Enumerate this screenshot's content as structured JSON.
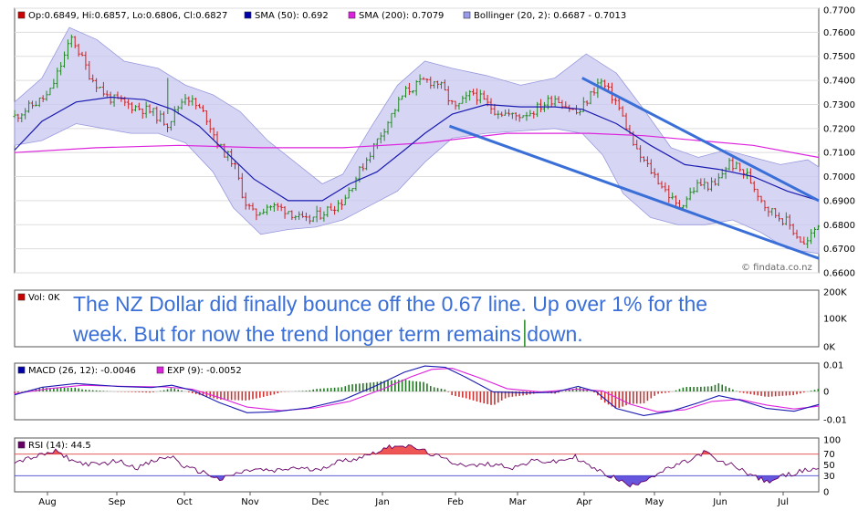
{
  "chart_data": [
    {
      "type": "candlestick",
      "legend": [
        {
          "label": "Op:0.6849, Hi:0.6857, Lo:0.6806, Cl:0.6827",
          "color": "#cc0000"
        },
        {
          "label": "SMA (50): 0.692",
          "color": "#0000aa"
        },
        {
          "label": "SMA (200): 0.7079",
          "color": "#dd22dd"
        },
        {
          "label": "Bollinger (20, 2): 0.6687 - 0.7013",
          "color": "#9999ee"
        }
      ],
      "ylim": [
        0.66,
        0.77
      ],
      "yticks": [
        "0.7700",
        "0.7600",
        "0.7500",
        "0.7400",
        "0.7300",
        "0.7200",
        "0.7100",
        "0.7000",
        "0.6900",
        "0.6800",
        "0.6700",
        "0.6600"
      ],
      "watermark": "© findata.co.nz",
      "price_path": [
        [
          0,
          0.725
        ],
        [
          25,
          0.734
        ],
        [
          42,
          0.758
        ],
        [
          55,
          0.742
        ],
        [
          68,
          0.733
        ],
        [
          82,
          0.73
        ],
        [
          100,
          0.727
        ],
        [
          112,
          0.722
        ],
        [
          125,
          0.734
        ],
        [
          140,
          0.725
        ],
        [
          150,
          0.712
        ],
        [
          160,
          0.706
        ],
        [
          168,
          0.69
        ],
        [
          175,
          0.684
        ],
        [
          185,
          0.688
        ],
        [
          200,
          0.686
        ],
        [
          212,
          0.681
        ],
        [
          222,
          0.684
        ],
        [
          240,
          0.69
        ],
        [
          255,
          0.705
        ],
        [
          270,
          0.72
        ],
        [
          285,
          0.735
        ],
        [
          300,
          0.74
        ],
        [
          310,
          0.739
        ],
        [
          322,
          0.728
        ],
        [
          335,
          0.735
        ],
        [
          350,
          0.728
        ],
        [
          365,
          0.725
        ],
        [
          378,
          0.727
        ],
        [
          395,
          0.733
        ],
        [
          412,
          0.726
        ],
        [
          428,
          0.74
        ],
        [
          440,
          0.731
        ],
        [
          455,
          0.71
        ],
        [
          470,
          0.699
        ],
        [
          485,
          0.687
        ],
        [
          500,
          0.697
        ],
        [
          512,
          0.696
        ],
        [
          522,
          0.706
        ],
        [
          535,
          0.701
        ],
        [
          550,
          0.687
        ],
        [
          565,
          0.681
        ],
        [
          578,
          0.671
        ],
        [
          588,
          0.681
        ]
      ],
      "sma50": [
        [
          0,
          0.711
        ],
        [
          20,
          0.723
        ],
        [
          45,
          0.731
        ],
        [
          70,
          0.733
        ],
        [
          95,
          0.732
        ],
        [
          115,
          0.728
        ],
        [
          135,
          0.721
        ],
        [
          155,
          0.71
        ],
        [
          175,
          0.699
        ],
        [
          200,
          0.69
        ],
        [
          225,
          0.69
        ],
        [
          245,
          0.697
        ],
        [
          265,
          0.702
        ],
        [
          285,
          0.711
        ],
        [
          300,
          0.718
        ],
        [
          320,
          0.726
        ],
        [
          345,
          0.73
        ],
        [
          370,
          0.729
        ],
        [
          395,
          0.729
        ],
        [
          415,
          0.728
        ],
        [
          440,
          0.722
        ],
        [
          465,
          0.713
        ],
        [
          490,
          0.705
        ],
        [
          515,
          0.703
        ],
        [
          540,
          0.7
        ],
        [
          565,
          0.694
        ],
        [
          588,
          0.69
        ]
      ],
      "sma200": [
        [
          0,
          0.71
        ],
        [
          60,
          0.712
        ],
        [
          120,
          0.713
        ],
        [
          180,
          0.712
        ],
        [
          240,
          0.712
        ],
        [
          300,
          0.714
        ],
        [
          360,
          0.718
        ],
        [
          420,
          0.718
        ],
        [
          460,
          0.717
        ],
        [
          500,
          0.715
        ],
        [
          540,
          0.713
        ],
        [
          588,
          0.708
        ]
      ],
      "bollinger_upper": [
        [
          0,
          0.731
        ],
        [
          20,
          0.741
        ],
        [
          40,
          0.762
        ],
        [
          60,
          0.757
        ],
        [
          80,
          0.748
        ],
        [
          105,
          0.745
        ],
        [
          125,
          0.738
        ],
        [
          145,
          0.734
        ],
        [
          165,
          0.727
        ],
        [
          185,
          0.715
        ],
        [
          205,
          0.706
        ],
        [
          225,
          0.697
        ],
        [
          240,
          0.701
        ],
        [
          260,
          0.72
        ],
        [
          280,
          0.738
        ],
        [
          300,
          0.748
        ],
        [
          320,
          0.745
        ],
        [
          345,
          0.742
        ],
        [
          370,
          0.738
        ],
        [
          395,
          0.741
        ],
        [
          418,
          0.751
        ],
        [
          440,
          0.743
        ],
        [
          460,
          0.728
        ],
        [
          480,
          0.712
        ],
        [
          500,
          0.708
        ],
        [
          520,
          0.711
        ],
        [
          540,
          0.708
        ],
        [
          560,
          0.705
        ],
        [
          580,
          0.707
        ],
        [
          588,
          0.704
        ]
      ],
      "bollinger_lower": [
        [
          0,
          0.713
        ],
        [
          20,
          0.715
        ],
        [
          45,
          0.722
        ],
        [
          65,
          0.72
        ],
        [
          85,
          0.718
        ],
        [
          105,
          0.718
        ],
        [
          125,
          0.714
        ],
        [
          145,
          0.702
        ],
        [
          160,
          0.687
        ],
        [
          180,
          0.676
        ],
        [
          200,
          0.678
        ],
        [
          220,
          0.679
        ],
        [
          240,
          0.682
        ],
        [
          260,
          0.688
        ],
        [
          280,
          0.694
        ],
        [
          300,
          0.706
        ],
        [
          320,
          0.716
        ],
        [
          345,
          0.718
        ],
        [
          370,
          0.719
        ],
        [
          395,
          0.72
        ],
        [
          415,
          0.718
        ],
        [
          430,
          0.709
        ],
        [
          445,
          0.693
        ],
        [
          465,
          0.683
        ],
        [
          485,
          0.68
        ],
        [
          505,
          0.68
        ],
        [
          525,
          0.682
        ],
        [
          545,
          0.677
        ],
        [
          565,
          0.67
        ],
        [
          588,
          0.668
        ]
      ],
      "trendlines": [
        {
          "from": [
            415,
            0.741
          ],
          "to": [
            588,
            0.69
          ]
        },
        {
          "from": [
            318,
            0.721
          ],
          "to": [
            588,
            0.666
          ]
        }
      ]
    },
    {
      "type": "bar",
      "legend": [
        {
          "label": "Vol: 0K",
          "color": "#cc0000"
        }
      ],
      "ylim": [
        0,
        200
      ],
      "yticks": [
        "200K",
        "100K",
        "0K"
      ],
      "values": [
        {
          "x": 373,
          "y": 95
        }
      ]
    },
    {
      "type": "line",
      "legend": [
        {
          "label": "MACD (26, 12): -0.0046",
          "color": "#0000aa"
        },
        {
          "label": "EXP (9): -0.0052",
          "color": "#dd22dd"
        }
      ],
      "ylim": [
        -0.01,
        0.01
      ],
      "yticks": [
        "0.01",
        "0",
        "-0.01"
      ],
      "macd": [
        [
          0,
          -0.0012
        ],
        [
          20,
          0.0015
        ],
        [
          45,
          0.0028
        ],
        [
          75,
          0.0018
        ],
        [
          100,
          0.0014
        ],
        [
          115,
          0.0022
        ],
        [
          130,
          0.0004
        ],
        [
          150,
          -0.004
        ],
        [
          170,
          -0.0075
        ],
        [
          190,
          -0.0072
        ],
        [
          215,
          -0.0058
        ],
        [
          240,
          -0.003
        ],
        [
          265,
          0.0022
        ],
        [
          285,
          0.0068
        ],
        [
          300,
          0.009
        ],
        [
          315,
          0.0085
        ],
        [
          330,
          0.005
        ],
        [
          350,
          -0.0002
        ],
        [
          375,
          -0.0005
        ],
        [
          395,
          -0.0003
        ],
        [
          412,
          0.0018
        ],
        [
          425,
          0.0
        ],
        [
          440,
          -0.006
        ],
        [
          460,
          -0.0085
        ],
        [
          480,
          -0.007
        ],
        [
          500,
          -0.004
        ],
        [
          515,
          -0.0015
        ],
        [
          530,
          -0.003
        ],
        [
          550,
          -0.006
        ],
        [
          570,
          -0.007
        ],
        [
          588,
          -0.0046
        ]
      ],
      "signal": [
        [
          0,
          -0.0008
        ],
        [
          25,
          0.001
        ],
        [
          50,
          0.0022
        ],
        [
          80,
          0.0018
        ],
        [
          110,
          0.0016
        ],
        [
          130,
          0.0008
        ],
        [
          150,
          -0.0022
        ],
        [
          170,
          -0.0055
        ],
        [
          195,
          -0.0068
        ],
        [
          220,
          -0.0058
        ],
        [
          245,
          -0.0035
        ],
        [
          270,
          0.001
        ],
        [
          290,
          0.0052
        ],
        [
          305,
          0.0078
        ],
        [
          320,
          0.0082
        ],
        [
          340,
          0.0048
        ],
        [
          360,
          0.001
        ],
        [
          385,
          -0.0002
        ],
        [
          410,
          0.0008
        ],
        [
          430,
          0.0002
        ],
        [
          450,
          -0.0045
        ],
        [
          470,
          -0.0072
        ],
        [
          490,
          -0.0065
        ],
        [
          510,
          -0.0035
        ],
        [
          530,
          -0.0028
        ],
        [
          550,
          -0.0048
        ],
        [
          570,
          -0.0062
        ],
        [
          588,
          -0.0052
        ]
      ]
    },
    {
      "type": "line",
      "legend": [
        {
          "label": "RSI (14): 44.5",
          "color": "#660066"
        }
      ],
      "ylim": [
        0,
        100
      ],
      "yticks": [
        "100",
        "70",
        "50",
        "30",
        "0"
      ],
      "thresholds": [
        70,
        30
      ],
      "x_labels": [
        "Aug",
        "Sep",
        "Oct",
        "Nov",
        "Dec",
        "Jan",
        "Feb",
        "Mar",
        "Apr",
        "May",
        "Jun",
        "Jul"
      ],
      "x_label_pos": [
        52,
        128,
        202,
        274,
        351,
        419,
        499,
        567,
        640,
        717,
        789,
        858
      ],
      "rsi": [
        [
          0,
          55
        ],
        [
          15,
          65
        ],
        [
          30,
          75
        ],
        [
          45,
          55
        ],
        [
          60,
          50
        ],
        [
          75,
          58
        ],
        [
          90,
          45
        ],
        [
          105,
          60
        ],
        [
          115,
          66
        ],
        [
          125,
          45
        ],
        [
          140,
          35
        ],
        [
          150,
          22
        ],
        [
          160,
          32
        ],
        [
          175,
          42
        ],
        [
          190,
          38
        ],
        [
          205,
          45
        ],
        [
          220,
          40
        ],
        [
          235,
          55
        ],
        [
          250,
          62
        ],
        [
          265,
          75
        ],
        [
          280,
          88
        ],
        [
          295,
          80
        ],
        [
          305,
          70
        ],
        [
          320,
          55
        ],
        [
          335,
          48
        ],
        [
          350,
          52
        ],
        [
          365,
          45
        ],
        [
          380,
          58
        ],
        [
          395,
          55
        ],
        [
          410,
          65
        ],
        [
          420,
          48
        ],
        [
          430,
          35
        ],
        [
          440,
          25
        ],
        [
          450,
          10
        ],
        [
          465,
          28
        ],
        [
          480,
          45
        ],
        [
          495,
          60
        ],
        [
          505,
          75
        ],
        [
          515,
          55
        ],
        [
          525,
          50
        ],
        [
          540,
          30
        ],
        [
          550,
          18
        ],
        [
          560,
          28
        ],
        [
          575,
          38
        ],
        [
          588,
          44.5
        ]
      ]
    }
  ],
  "annotation": {
    "line1": "The NZ Dollar did finally bounce off the 0.67 line. Up over 1% for the",
    "line2": "week. But for now the trend longer term remains down."
  },
  "colors": {
    "up": "#228822",
    "down": "#cc2222",
    "band": "#c8c8f0",
    "band_edge": "#9999dd",
    "sma50": "#1a1ab0",
    "sma200": "#dd22dd",
    "trend": "#3a6fd8",
    "rsi_hi": "#ee5555",
    "rsi_lo": "#6655dd"
  }
}
